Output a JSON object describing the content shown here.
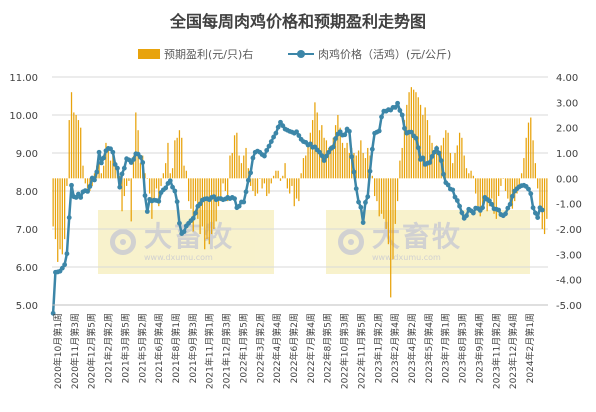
{
  "title": "全国每周肉鸡价格和预期盈利走势图",
  "colors": {
    "bar": "#E8A30C",
    "line": "#3C86A8",
    "axis_text": "#404040",
    "grid": "#D9D9D9"
  },
  "watermark": {
    "brand": "大畜牧",
    "url": "www.dxumu.com"
  },
  "chart_data": {
    "type": "bar+line",
    "title": "全国每周肉鸡价格和预期盈利走势图",
    "legend_position": "top",
    "grid": true,
    "y_left": {
      "min": 5.0,
      "max": 11.0,
      "step": 1.0,
      "ticks": [
        "5.00",
        "6.00",
        "7.00",
        "8.00",
        "9.00",
        "10.00",
        "11.00"
      ]
    },
    "y_right": {
      "min": -5.0,
      "max": 4.0,
      "step": 1.0,
      "ticks": [
        "-5.00",
        "-4.00",
        "-3.00",
        "-2.00",
        "-1.00",
        "0.00",
        "1.00",
        "2.00",
        "3.00",
        "4.00"
      ]
    },
    "x_tick_labels": [
      "2020年10月第1周",
      "2020年11月第3周",
      "2020年12月第5周",
      "2021年2月第2周",
      "2021年3月第5周",
      "2021年5月第2周",
      "2021年6月第4周",
      "2021年8月第1周",
      "2021年9月第3周",
      "2021年11月第1周",
      "2021年12月第3周",
      "2022年1月第5周",
      "2022年3月第2周",
      "2022年4月第4周",
      "2022年6月第2周",
      "2022年7月第4周",
      "2022年8月第5周",
      "2022年10月第3周",
      "2022年11月第5周",
      "2023年1月第2周",
      "2023年2月第4周",
      "2023年4月第2周",
      "2023年5月第4周",
      "2023年7月第1周",
      "2023年8月第3周",
      "2023年9月第4周",
      "2023年11月第2周",
      "2023年12月第4周",
      "2024年2月第1周"
    ],
    "series": [
      {
        "name": "预期盈利(元/只)右",
        "type": "bar",
        "axis": "right",
        "values": [
          -1.9,
          -2.4,
          -3.3,
          -2.8,
          -3.0,
          -2.4,
          -0.3,
          2.3,
          3.4,
          2.6,
          2.5,
          2.3,
          2.0,
          0.5,
          -0.2,
          -0.4,
          -0.5,
          -0.3,
          0.2,
          0.5,
          0.6,
          0.2,
          0.5,
          1.4,
          1.2,
          0.7,
          0.9,
          0.6,
          0.3,
          0.1,
          -1.3,
          -0.7,
          -0.3,
          -0.1,
          -1.7,
          0.9,
          2.6,
          1.9,
          0.6,
          0.9,
          0.2,
          0.0,
          -0.6,
          -1.6,
          -0.8,
          -0.4,
          -1.1,
          -0.3,
          0.2,
          0.6,
          1.4,
          0.2,
          0.4,
          1.5,
          1.6,
          1.9,
          1.6,
          0.5,
          0.3,
          -0.9,
          -1.2,
          -2.1,
          -0.9,
          -1.6,
          -2.2,
          -1.9,
          -2.8,
          -2.4,
          -2.6,
          -2.2,
          -2.0,
          -1.7,
          -1.1,
          -0.9,
          -0.2,
          -0.5,
          -0.9,
          0.9,
          1.0,
          1.7,
          1.8,
          0.9,
          0.6,
          0.9,
          1.2,
          0.4,
          -0.3,
          -0.5,
          -0.7,
          -0.6,
          0.0,
          -0.4,
          -0.2,
          -0.7,
          -0.6,
          -0.2,
          0.1,
          0.3,
          0.3,
          -0.1,
          0.1,
          0.6,
          -0.4,
          -0.6,
          -0.3,
          -1.1,
          -0.8,
          -0.9,
          0.2,
          0.8,
          0.9,
          1.3,
          1.8,
          2.3,
          3.0,
          2.6,
          1.9,
          2.1,
          1.6,
          1.5,
          1.2,
          1.3,
          1.6,
          2.1,
          2.5,
          2.0,
          1.4,
          1.2,
          1.4,
          1.0,
          1.2,
          1.0,
          0.9,
          1.1,
          1.5,
          1.0,
          0.8,
          1.2,
          0.9,
          0.1,
          -0.7,
          -0.9,
          -1.5,
          -1.4,
          -1.6,
          -2.0,
          -2.6,
          -4.7,
          -3.2,
          -1.8,
          -0.9,
          0.7,
          1.2,
          2.3,
          2.9,
          3.4,
          3.6,
          3.5,
          3.4,
          3.2,
          2.9,
          2.5,
          2.8,
          2.3,
          1.7,
          1.4,
          1.1,
          1.3,
          1.0,
          1.3,
          1.6,
          1.9,
          1.8,
          1.0,
          0.6,
          1.0,
          1.3,
          1.8,
          1.6,
          0.9,
          0.4,
          0.2,
          0.3,
          0.1,
          -0.6,
          -1.1,
          -1.5,
          -1.2,
          -0.9,
          -1.3,
          -1.1,
          -0.8,
          -1.4,
          -1.6,
          -0.7,
          -0.3,
          0.0,
          -0.5,
          -0.8,
          -1.0,
          -1.2,
          -0.9,
          -0.6,
          -0.3,
          0.2,
          0.8,
          1.6,
          2.2,
          2.4,
          1.5,
          0.6,
          -0.4,
          -1.1,
          -2.0,
          -2.2,
          -1.6
        ],
        "color": "#E8A30C"
      },
      {
        "name": "肉鸡价格（活鸡）(元/公斤)",
        "type": "line",
        "axis": "left",
        "values": [
          4.78,
          5.86,
          5.87,
          5.89,
          5.97,
          6.06,
          6.35,
          7.3,
          8.15,
          7.85,
          7.83,
          7.92,
          7.83,
          7.98,
          8.01,
          7.99,
          8.12,
          8.34,
          8.29,
          8.5,
          9.02,
          8.74,
          8.87,
          9.06,
          9.12,
          9.11,
          9.02,
          8.7,
          8.6,
          8.1,
          8.45,
          8.6,
          8.85,
          8.82,
          8.75,
          8.83,
          8.98,
          8.97,
          8.89,
          8.75,
          7.88,
          7.46,
          7.78,
          7.74,
          7.76,
          7.75,
          7.73,
          7.96,
          8.03,
          8.08,
          8.2,
          8.27,
          8.1,
          8.0,
          7.72,
          7.15,
          6.88,
          6.93,
          7.08,
          7.15,
          7.22,
          7.28,
          7.42,
          7.6,
          7.66,
          7.76,
          7.79,
          7.8,
          7.77,
          7.83,
          7.85,
          7.77,
          7.8,
          7.8,
          7.77,
          7.79,
          7.83,
          7.8,
          7.83,
          7.8,
          7.56,
          7.6,
          7.71,
          7.71,
          7.98,
          8.28,
          8.48,
          8.87,
          9.02,
          9.05,
          9.02,
          8.96,
          8.92,
          9.07,
          9.18,
          9.3,
          9.42,
          9.52,
          9.68,
          9.81,
          9.72,
          9.63,
          9.6,
          9.57,
          9.55,
          9.52,
          9.56,
          9.46,
          9.36,
          9.3,
          9.28,
          9.21,
          9.24,
          9.15,
          9.16,
          9.08,
          9.02,
          8.93,
          8.8,
          8.92,
          9.02,
          9.12,
          9.16,
          9.38,
          9.5,
          9.56,
          9.47,
          9.48,
          9.63,
          9.57,
          8.9,
          8.5,
          8.06,
          7.71,
          7.57,
          7.17,
          7.7,
          7.85,
          8.52,
          9.1,
          9.52,
          9.55,
          9.58,
          9.95,
          10.1,
          10.1,
          10.14,
          10.13,
          10.2,
          10.2,
          10.31,
          10.12,
          10.0,
          9.65,
          9.52,
          9.55,
          9.55,
          9.45,
          9.39,
          9.14,
          8.83,
          8.87,
          8.7,
          8.73,
          8.75,
          8.91,
          9.02,
          9.12,
          9.0,
          8.8,
          8.44,
          8.22,
          8.16,
          8.05,
          8.03,
          7.84,
          7.75,
          7.6,
          7.43,
          7.28,
          7.35,
          7.52,
          7.48,
          7.42,
          7.55,
          7.54,
          7.49,
          7.56,
          7.83,
          7.78,
          7.74,
          7.65,
          7.53,
          7.52,
          7.5,
          7.38,
          7.35,
          7.4,
          7.55,
          7.65,
          7.86,
          8.0,
          8.06,
          8.11,
          8.14,
          8.15,
          8.12,
          8.05,
          7.93,
          7.56,
          7.42,
          7.3,
          7.56,
          7.5
        ],
        "color": "#3C86A8"
      }
    ]
  }
}
